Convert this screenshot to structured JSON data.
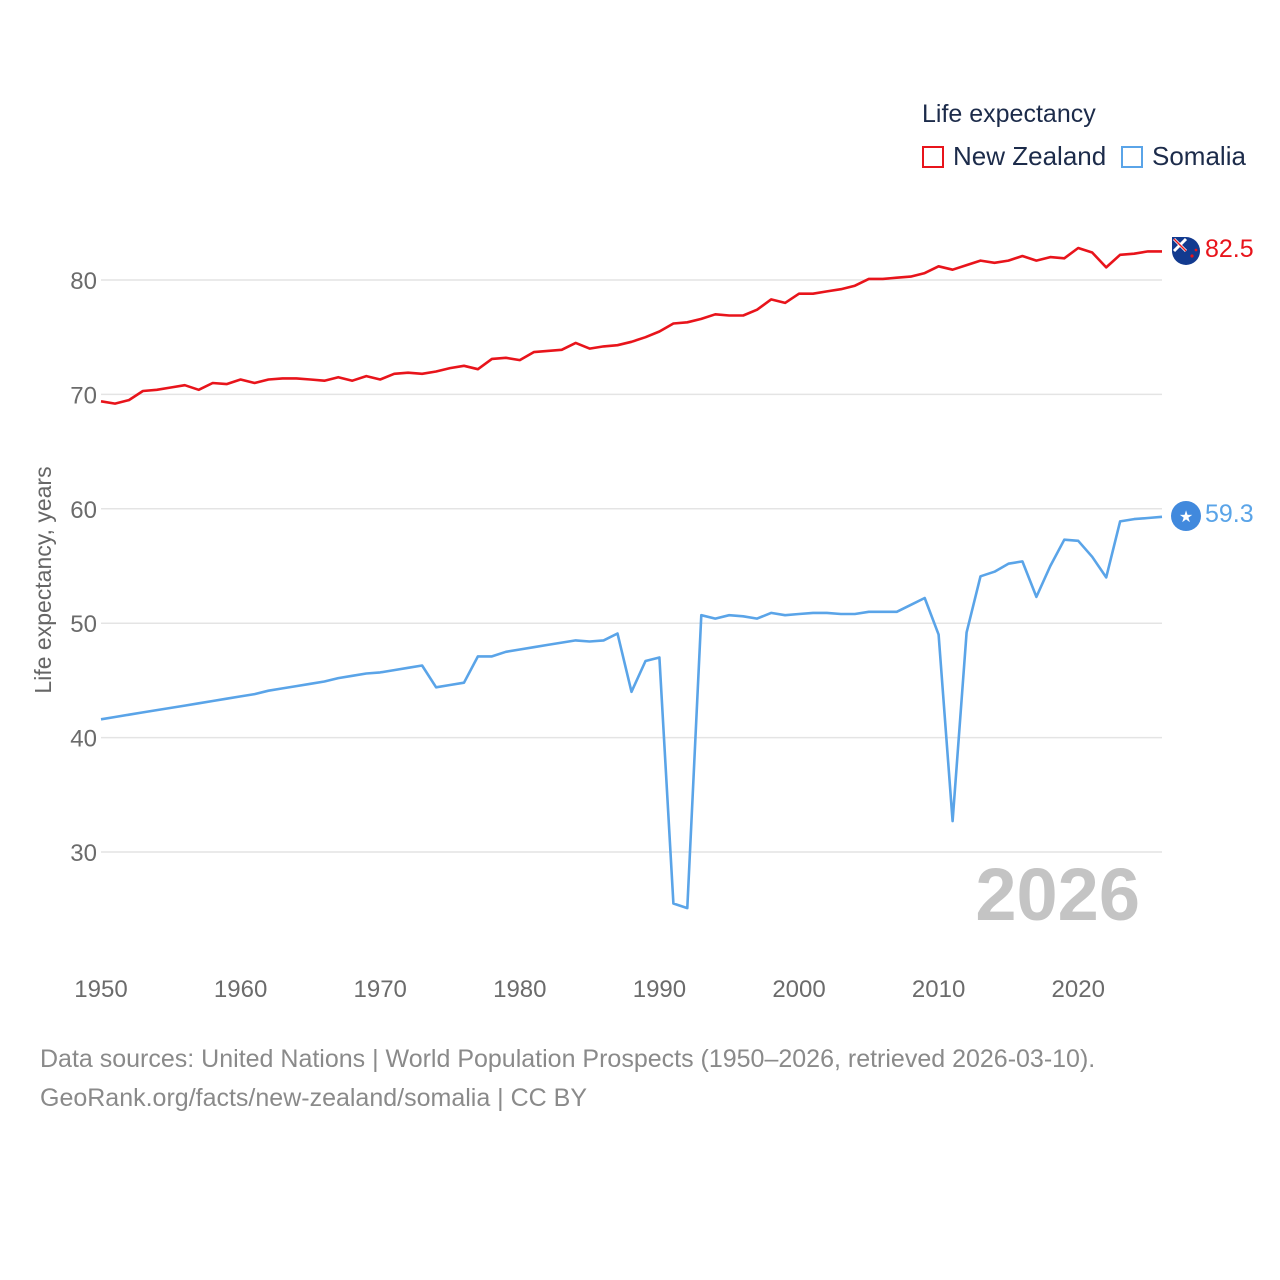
{
  "legend": {
    "title": "Life expectancy",
    "items": [
      {
        "label": "New Zealand",
        "color": "#e8141b"
      },
      {
        "label": "Somalia",
        "color": "#5aa4e8"
      }
    ]
  },
  "year_watermark": "2026",
  "end_labels": {
    "new_zealand": "82.5",
    "somalia": "59.3"
  },
  "source": {
    "line1": "Data sources: United Nations | World Population Prospects (1950–2026, retrieved 2026-03-10).",
    "line2": "GeoRank.org/facts/new-zealand/somalia | CC BY"
  },
  "chart_data": {
    "type": "line",
    "title": "Life expectancy",
    "xlabel": "",
    "ylabel": "Life expectancy, years",
    "xlim": [
      1950,
      2026
    ],
    "ylim": [
      22,
      86
    ],
    "x_ticks": [
      1950,
      1960,
      1970,
      1980,
      1990,
      2000,
      2010,
      2020
    ],
    "y_ticks": [
      30,
      40,
      50,
      60,
      70,
      80
    ],
    "grid": true,
    "legend_position": "top-right",
    "series": [
      {
        "name": "New Zealand",
        "color": "#e8141b",
        "x": [
          1950,
          1951,
          1952,
          1953,
          1954,
          1955,
          1956,
          1957,
          1958,
          1959,
          1960,
          1961,
          1962,
          1963,
          1964,
          1965,
          1966,
          1967,
          1968,
          1969,
          1970,
          1971,
          1972,
          1973,
          1974,
          1975,
          1976,
          1977,
          1978,
          1979,
          1980,
          1981,
          1982,
          1983,
          1984,
          1985,
          1986,
          1987,
          1988,
          1989,
          1990,
          1991,
          1992,
          1993,
          1994,
          1995,
          1996,
          1997,
          1998,
          1999,
          2000,
          2001,
          2002,
          2003,
          2004,
          2005,
          2006,
          2007,
          2008,
          2009,
          2010,
          2011,
          2012,
          2013,
          2014,
          2015,
          2016,
          2017,
          2018,
          2019,
          2020,
          2021,
          2022,
          2023,
          2024,
          2025,
          2026
        ],
        "values": [
          69.4,
          69.2,
          69.5,
          70.3,
          70.4,
          70.6,
          70.8,
          70.4,
          71.0,
          70.9,
          71.3,
          71.0,
          71.3,
          71.4,
          71.4,
          71.3,
          71.2,
          71.5,
          71.2,
          71.6,
          71.3,
          71.8,
          71.9,
          71.8,
          72.0,
          72.3,
          72.5,
          72.2,
          73.1,
          73.2,
          73.0,
          73.7,
          73.8,
          73.9,
          74.5,
          74.0,
          74.2,
          74.3,
          74.6,
          75.0,
          75.5,
          76.2,
          76.3,
          76.6,
          77.0,
          76.9,
          76.9,
          77.4,
          78.3,
          78.0,
          78.8,
          78.8,
          79.0,
          79.2,
          79.5,
          80.1,
          80.1,
          80.2,
          80.3,
          80.6,
          81.2,
          80.9,
          81.3,
          81.7,
          81.5,
          81.7,
          82.1,
          81.7,
          82.0,
          81.9,
          82.8,
          82.4,
          81.1,
          82.2,
          82.3,
          82.5,
          82.5
        ]
      },
      {
        "name": "Somalia",
        "color": "#5aa4e8",
        "x": [
          1950,
          1951,
          1952,
          1953,
          1954,
          1955,
          1956,
          1957,
          1958,
          1959,
          1960,
          1961,
          1962,
          1963,
          1964,
          1965,
          1966,
          1967,
          1968,
          1969,
          1970,
          1971,
          1972,
          1973,
          1974,
          1975,
          1976,
          1977,
          1978,
          1979,
          1980,
          1981,
          1982,
          1983,
          1984,
          1985,
          1986,
          1987,
          1988,
          1989,
          1990,
          1991,
          1992,
          1993,
          1994,
          1995,
          1996,
          1997,
          1998,
          1999,
          2000,
          2001,
          2002,
          2003,
          2004,
          2005,
          2006,
          2007,
          2008,
          2009,
          2010,
          2011,
          2012,
          2013,
          2014,
          2015,
          2016,
          2017,
          2018,
          2019,
          2020,
          2021,
          2022,
          2023,
          2024,
          2025,
          2026
        ],
        "values": [
          41.6,
          41.8,
          42.0,
          42.2,
          42.4,
          42.6,
          42.8,
          43.0,
          43.2,
          43.4,
          43.6,
          43.8,
          44.1,
          44.3,
          44.5,
          44.7,
          44.9,
          45.2,
          45.4,
          45.6,
          45.7,
          45.9,
          46.1,
          46.3,
          44.4,
          44.6,
          44.8,
          47.1,
          47.1,
          47.5,
          47.7,
          47.9,
          48.1,
          48.3,
          48.5,
          48.4,
          48.5,
          49.1,
          44.0,
          46.7,
          47.0,
          25.5,
          25.1,
          50.7,
          50.4,
          50.7,
          50.6,
          50.4,
          50.9,
          50.7,
          50.8,
          50.9,
          50.9,
          50.8,
          50.8,
          51.0,
          51.0,
          51.0,
          51.6,
          52.2,
          49.0,
          32.7,
          49.2,
          54.1,
          54.5,
          55.2,
          55.4,
          52.3,
          55.0,
          57.3,
          57.2,
          55.8,
          54.0,
          58.9,
          59.1,
          59.2,
          59.3
        ]
      }
    ]
  }
}
